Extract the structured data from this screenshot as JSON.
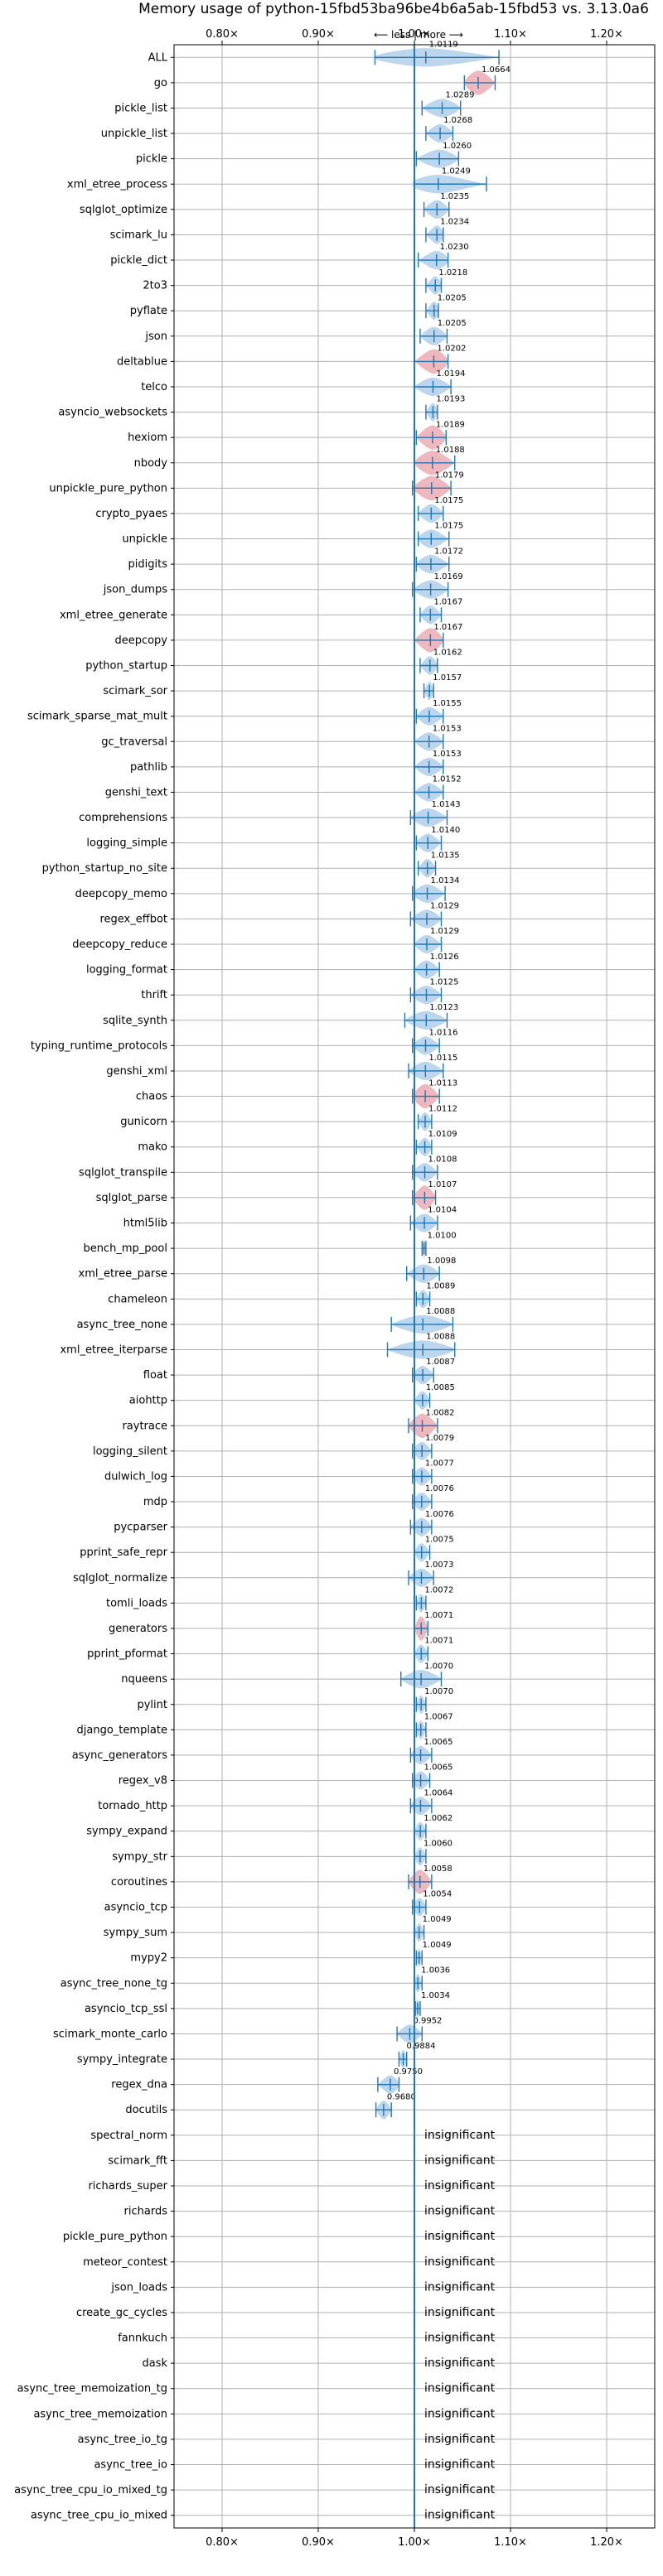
{
  "chart_data": {
    "type": "violin",
    "title": "Memory usage of python-15fbd53ba96be4b6a5ab-15fbd53 vs. 3.13.0a6",
    "direction_label": "⟵ less | more ⟶",
    "x_tick_labels": [
      "0.80×",
      "0.90×",
      "1.00×",
      "1.10×",
      "1.20×"
    ],
    "x_ticks": [
      0.8,
      0.9,
      1.0,
      1.1,
      1.2
    ],
    "xlim": [
      0.75,
      1.25
    ],
    "reference_line": 1.0,
    "grid": true,
    "insignificant_label": "insignificant",
    "colors": {
      "neutral": "#1f77b4",
      "regression": "#e8a0a8",
      "improvement": "#1f77b4",
      "reference": "#1f77b4"
    },
    "benchmarks": [
      {
        "name": "ALL",
        "value": 1.0119,
        "low": 0.959,
        "high": 1.088,
        "status": "neutral"
      },
      {
        "name": "go",
        "value": 1.0664,
        "low": 1.052,
        "high": 1.084,
        "status": "regression"
      },
      {
        "name": "pickle_list",
        "value": 1.0289,
        "low": 1.008,
        "high": 1.048,
        "status": "neutral"
      },
      {
        "name": "unpickle_list",
        "value": 1.0268,
        "low": 1.012,
        "high": 1.04,
        "status": "neutral"
      },
      {
        "name": "pickle",
        "value": 1.026,
        "low": 1.002,
        "high": 1.046,
        "status": "neutral"
      },
      {
        "name": "xml_etree_process",
        "value": 1.0249,
        "low": 1.0,
        "high": 1.075,
        "status": "neutral"
      },
      {
        "name": "sqlglot_optimize",
        "value": 1.0235,
        "low": 1.01,
        "high": 1.036,
        "status": "neutral"
      },
      {
        "name": "scimark_lu",
        "value": 1.0234,
        "low": 1.012,
        "high": 1.03,
        "status": "neutral"
      },
      {
        "name": "pickle_dict",
        "value": 1.023,
        "low": 1.004,
        "high": 1.035,
        "status": "neutral"
      },
      {
        "name": "2to3",
        "value": 1.0218,
        "low": 1.012,
        "high": 1.028,
        "status": "neutral"
      },
      {
        "name": "pyflate",
        "value": 1.0205,
        "low": 1.012,
        "high": 1.025,
        "status": "neutral"
      },
      {
        "name": "json",
        "value": 1.0205,
        "low": 1.006,
        "high": 1.034,
        "status": "neutral"
      },
      {
        "name": "deltablue",
        "value": 1.0202,
        "low": 1.0,
        "high": 1.035,
        "status": "regression"
      },
      {
        "name": "telco",
        "value": 1.0194,
        "low": 1.0,
        "high": 1.038,
        "status": "neutral"
      },
      {
        "name": "asyncio_websockets",
        "value": 1.0193,
        "low": 1.012,
        "high": 1.024,
        "status": "neutral"
      },
      {
        "name": "hexiom",
        "value": 1.0189,
        "low": 1.002,
        "high": 1.033,
        "status": "regression"
      },
      {
        "name": "nbody",
        "value": 1.0188,
        "low": 1.0,
        "high": 1.042,
        "status": "regression"
      },
      {
        "name": "unpickle_pure_python",
        "value": 1.0179,
        "low": 0.998,
        "high": 1.038,
        "status": "regression"
      },
      {
        "name": "crypto_pyaes",
        "value": 1.0175,
        "low": 1.004,
        "high": 1.03,
        "status": "neutral"
      },
      {
        "name": "unpickle",
        "value": 1.0175,
        "low": 1.004,
        "high": 1.036,
        "status": "neutral"
      },
      {
        "name": "pidigits",
        "value": 1.0172,
        "low": 1.002,
        "high": 1.036,
        "status": "neutral"
      },
      {
        "name": "json_dumps",
        "value": 1.0169,
        "low": 0.998,
        "high": 1.035,
        "status": "neutral"
      },
      {
        "name": "xml_etree_generate",
        "value": 1.0167,
        "low": 1.006,
        "high": 1.028,
        "status": "neutral"
      },
      {
        "name": "deepcopy",
        "value": 1.0167,
        "low": 1.0,
        "high": 1.03,
        "status": "regression"
      },
      {
        "name": "python_startup",
        "value": 1.0162,
        "low": 1.006,
        "high": 1.024,
        "status": "neutral"
      },
      {
        "name": "scimark_sor",
        "value": 1.0157,
        "low": 1.01,
        "high": 1.02,
        "status": "neutral"
      },
      {
        "name": "scimark_sparse_mat_mult",
        "value": 1.0155,
        "low": 1.002,
        "high": 1.03,
        "status": "neutral"
      },
      {
        "name": "gc_traversal",
        "value": 1.0153,
        "low": 1.0,
        "high": 1.03,
        "status": "neutral"
      },
      {
        "name": "pathlib",
        "value": 1.0153,
        "low": 1.0,
        "high": 1.03,
        "status": "neutral"
      },
      {
        "name": "genshi_text",
        "value": 1.0152,
        "low": 1.0,
        "high": 1.03,
        "status": "neutral"
      },
      {
        "name": "comprehensions",
        "value": 1.0143,
        "low": 0.996,
        "high": 1.034,
        "status": "neutral"
      },
      {
        "name": "logging_simple",
        "value": 1.014,
        "low": 1.002,
        "high": 1.028,
        "status": "neutral"
      },
      {
        "name": "python_startup_no_site",
        "value": 1.0135,
        "low": 1.004,
        "high": 1.022,
        "status": "neutral"
      },
      {
        "name": "deepcopy_memo",
        "value": 1.0134,
        "low": 0.998,
        "high": 1.032,
        "status": "neutral"
      },
      {
        "name": "regex_effbot",
        "value": 1.0129,
        "low": 0.996,
        "high": 1.028,
        "status": "neutral"
      },
      {
        "name": "deepcopy_reduce",
        "value": 1.0129,
        "low": 1.0,
        "high": 1.028,
        "status": "neutral"
      },
      {
        "name": "logging_format",
        "value": 1.0126,
        "low": 1.0,
        "high": 1.026,
        "status": "neutral"
      },
      {
        "name": "thrift",
        "value": 1.0125,
        "low": 0.996,
        "high": 1.028,
        "status": "neutral"
      },
      {
        "name": "sqlite_synth",
        "value": 1.0123,
        "low": 0.99,
        "high": 1.034,
        "status": "neutral"
      },
      {
        "name": "typing_runtime_protocols",
        "value": 1.0116,
        "low": 0.998,
        "high": 1.026,
        "status": "neutral"
      },
      {
        "name": "genshi_xml",
        "value": 1.0115,
        "low": 0.994,
        "high": 1.03,
        "status": "neutral"
      },
      {
        "name": "chaos",
        "value": 1.0113,
        "low": 0.998,
        "high": 1.026,
        "status": "regression"
      },
      {
        "name": "gunicorn",
        "value": 1.0112,
        "low": 1.004,
        "high": 1.018,
        "status": "neutral"
      },
      {
        "name": "mako",
        "value": 1.0109,
        "low": 1.002,
        "high": 1.018,
        "status": "neutral"
      },
      {
        "name": "sqlglot_transpile",
        "value": 1.0108,
        "low": 0.998,
        "high": 1.024,
        "status": "neutral"
      },
      {
        "name": "sqlglot_parse",
        "value": 1.0107,
        "low": 0.998,
        "high": 1.022,
        "status": "regression"
      },
      {
        "name": "html5lib",
        "value": 1.0104,
        "low": 0.996,
        "high": 1.024,
        "status": "neutral"
      },
      {
        "name": "bench_mp_pool",
        "value": 1.01,
        "low": 1.008,
        "high": 1.012,
        "status": "neutral"
      },
      {
        "name": "xml_etree_parse",
        "value": 1.0098,
        "low": 0.992,
        "high": 1.026,
        "status": "neutral"
      },
      {
        "name": "chameleon",
        "value": 1.0089,
        "low": 1.002,
        "high": 1.016,
        "status": "neutral"
      },
      {
        "name": "async_tree_none",
        "value": 1.0088,
        "low": 0.976,
        "high": 1.04,
        "status": "neutral"
      },
      {
        "name": "xml_etree_iterparse",
        "value": 1.0088,
        "low": 0.972,
        "high": 1.042,
        "status": "neutral"
      },
      {
        "name": "float",
        "value": 1.0087,
        "low": 0.998,
        "high": 1.02,
        "status": "neutral"
      },
      {
        "name": "aiohttp",
        "value": 1.0085,
        "low": 1.0,
        "high": 1.016,
        "status": "neutral"
      },
      {
        "name": "raytrace",
        "value": 1.0082,
        "low": 0.994,
        "high": 1.024,
        "status": "regression"
      },
      {
        "name": "logging_silent",
        "value": 1.0079,
        "low": 0.998,
        "high": 1.018,
        "status": "neutral"
      },
      {
        "name": "dulwich_log",
        "value": 1.0077,
        "low": 0.998,
        "high": 1.018,
        "status": "neutral"
      },
      {
        "name": "mdp",
        "value": 1.0076,
        "low": 0.998,
        "high": 1.018,
        "status": "neutral"
      },
      {
        "name": "pycparser",
        "value": 1.0076,
        "low": 0.996,
        "high": 1.018,
        "status": "neutral"
      },
      {
        "name": "pprint_safe_repr",
        "value": 1.0075,
        "low": 1.0,
        "high": 1.016,
        "status": "neutral"
      },
      {
        "name": "sqlglot_normalize",
        "value": 1.0073,
        "low": 0.994,
        "high": 1.02,
        "status": "neutral"
      },
      {
        "name": "tomli_loads",
        "value": 1.0072,
        "low": 1.002,
        "high": 1.012,
        "status": "neutral"
      },
      {
        "name": "generators",
        "value": 1.0071,
        "low": 1.0,
        "high": 1.014,
        "status": "regression"
      },
      {
        "name": "pprint_pformat",
        "value": 1.0071,
        "low": 1.0,
        "high": 1.014,
        "status": "neutral"
      },
      {
        "name": "nqueens",
        "value": 1.007,
        "low": 0.986,
        "high": 1.028,
        "status": "neutral"
      },
      {
        "name": "pylint",
        "value": 1.007,
        "low": 1.002,
        "high": 1.012,
        "status": "neutral"
      },
      {
        "name": "django_template",
        "value": 1.0067,
        "low": 1.002,
        "high": 1.012,
        "status": "neutral"
      },
      {
        "name": "async_generators",
        "value": 1.0065,
        "low": 0.996,
        "high": 1.018,
        "status": "neutral"
      },
      {
        "name": "regex_v8",
        "value": 1.0065,
        "low": 0.998,
        "high": 1.016,
        "status": "neutral"
      },
      {
        "name": "tornado_http",
        "value": 1.0064,
        "low": 0.996,
        "high": 1.018,
        "status": "neutral"
      },
      {
        "name": "sympy_expand",
        "value": 1.0062,
        "low": 1.0,
        "high": 1.012,
        "status": "neutral"
      },
      {
        "name": "sympy_str",
        "value": 1.006,
        "low": 1.0,
        "high": 1.012,
        "status": "neutral"
      },
      {
        "name": "coroutines",
        "value": 1.0058,
        "low": 0.994,
        "high": 1.018,
        "status": "regression"
      },
      {
        "name": "asyncio_tcp",
        "value": 1.0054,
        "low": 0.998,
        "high": 1.012,
        "status": "neutral"
      },
      {
        "name": "sympy_sum",
        "value": 1.0049,
        "low": 1.0,
        "high": 1.01,
        "status": "neutral"
      },
      {
        "name": "mypy2",
        "value": 1.0049,
        "low": 1.002,
        "high": 1.008,
        "status": "neutral"
      },
      {
        "name": "async_tree_none_tg",
        "value": 1.0036,
        "low": 1.0,
        "high": 1.008,
        "status": "neutral"
      },
      {
        "name": "asyncio_tcp_ssl",
        "value": 1.0034,
        "low": 1.001,
        "high": 1.006,
        "status": "neutral"
      },
      {
        "name": "scimark_monte_carlo",
        "value": 0.9952,
        "low": 0.982,
        "high": 1.008,
        "status": "neutral"
      },
      {
        "name": "sympy_integrate",
        "value": 0.9884,
        "low": 0.984,
        "high": 0.992,
        "status": "neutral"
      },
      {
        "name": "regex_dna",
        "value": 0.975,
        "low": 0.962,
        "high": 0.984,
        "status": "neutral"
      },
      {
        "name": "docutils",
        "value": 0.968,
        "low": 0.96,
        "high": 0.976,
        "status": "neutral"
      },
      {
        "name": "spectral_norm",
        "status": "insignificant"
      },
      {
        "name": "scimark_fft",
        "status": "insignificant"
      },
      {
        "name": "richards_super",
        "status": "insignificant"
      },
      {
        "name": "richards",
        "status": "insignificant"
      },
      {
        "name": "pickle_pure_python",
        "status": "insignificant"
      },
      {
        "name": "meteor_contest",
        "status": "insignificant"
      },
      {
        "name": "json_loads",
        "status": "insignificant"
      },
      {
        "name": "create_gc_cycles",
        "status": "insignificant"
      },
      {
        "name": "fannkuch",
        "status": "insignificant"
      },
      {
        "name": "dask",
        "status": "insignificant"
      },
      {
        "name": "async_tree_memoization_tg",
        "status": "insignificant"
      },
      {
        "name": "async_tree_memoization",
        "status": "insignificant"
      },
      {
        "name": "async_tree_io_tg",
        "status": "insignificant"
      },
      {
        "name": "async_tree_io",
        "status": "insignificant"
      },
      {
        "name": "async_tree_cpu_io_mixed_tg",
        "status": "insignificant"
      },
      {
        "name": "async_tree_cpu_io_mixed",
        "status": "insignificant"
      }
    ]
  }
}
